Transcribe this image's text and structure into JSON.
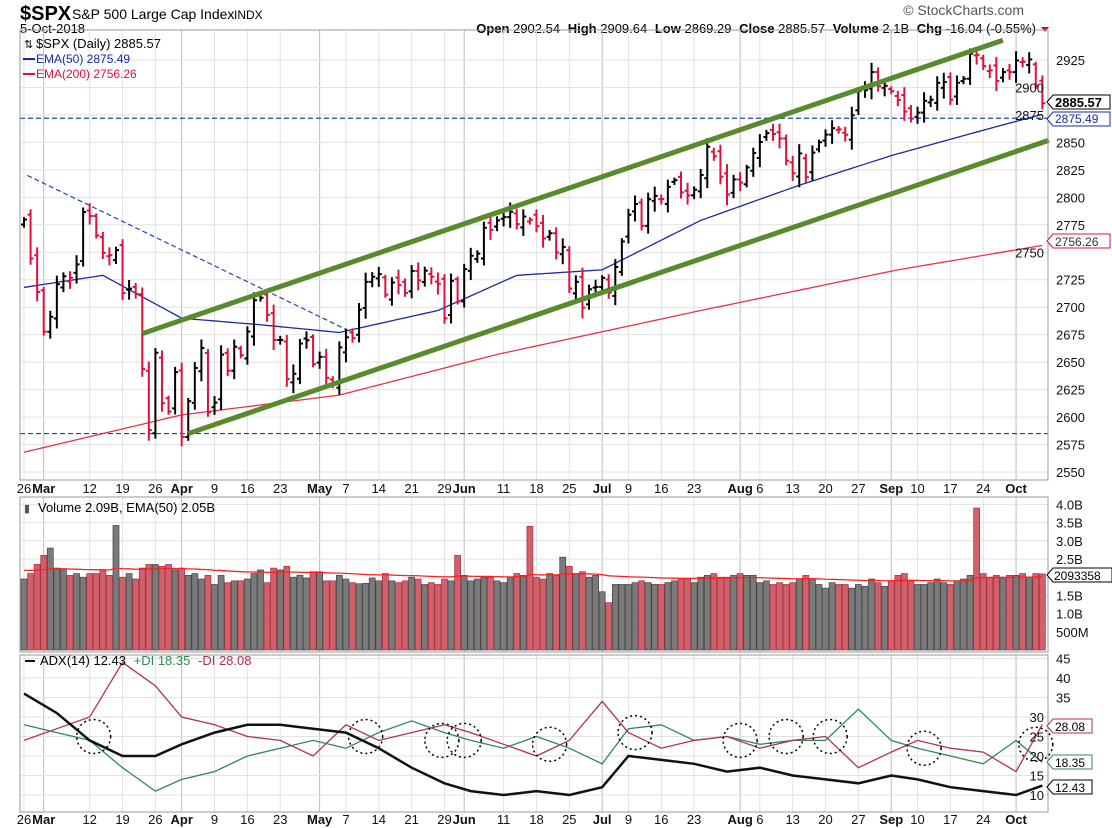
{
  "header": {
    "symbol": "$SPX",
    "name": "S&P 500 Large Cap Index",
    "exchange": "INDX",
    "date": "5-Oct-2018",
    "watermark": "© StockCharts.com",
    "quote": {
      "open_label": "Open",
      "open": "2902.54",
      "high_label": "High",
      "high": "2909.64",
      "low_label": "Low",
      "low": "2869.29",
      "close_label": "Close",
      "close": "2885.57",
      "volume_label": "Volume",
      "volume": "2.1B",
      "chg_label": "Chg",
      "chg": "-16.04 (-0.55%)"
    }
  },
  "legend": {
    "price": "$SPX (Daily) 2885.57",
    "ema50": "EMA(50) 2875.49",
    "ema200": "EMA(200) 2756.26",
    "volume": "Volume 2.09B, EMA(50) 2.05B",
    "adx": "ADX(14) 12.43",
    "pdi": "+DI 18.35",
    "mdi": "-DI 28.08"
  },
  "tags": {
    "close": "2885.57",
    "ema50": "2875.49",
    "ema200": "2756.26",
    "volume": "2093358",
    "mdi": "28.08",
    "pdi": "18.35",
    "adx": "12.43"
  },
  "colors": {
    "up": "#000000",
    "down": "#e0103c",
    "ema50": "#1c2a9c",
    "ema200": "#e8344a",
    "trend": "#5a8a2e",
    "dashed": "#2244aa",
    "vol_up": "#7a7a7a",
    "vol_down": "#d0606a",
    "pdi": "#2e8a52",
    "mdi": "#b0305a"
  },
  "chart_data": [
    {
      "type": "ohlc",
      "title": "$SPX (Daily)",
      "ylim": [
        2540,
        2950
      ],
      "yticks": [
        2550,
        2575,
        2600,
        2625,
        2650,
        2675,
        2700,
        2725,
        2750,
        2775,
        2800,
        2825,
        2850,
        2875,
        2900,
        2925
      ],
      "xtick_labels": [
        {
          "i": 0,
          "t": "26",
          "b": false
        },
        {
          "i": 3,
          "t": "Mar",
          "b": true
        },
        {
          "i": 10,
          "t": "12",
          "b": false
        },
        {
          "i": 15,
          "t": "19",
          "b": false
        },
        {
          "i": 20,
          "t": "26",
          "b": false
        },
        {
          "i": 24,
          "t": "Apr",
          "b": true
        },
        {
          "i": 29,
          "t": "9",
          "b": false
        },
        {
          "i": 34,
          "t": "16",
          "b": false
        },
        {
          "i": 39,
          "t": "23",
          "b": false
        },
        {
          "i": 45,
          "t": "May",
          "b": true
        },
        {
          "i": 49,
          "t": "7",
          "b": false
        },
        {
          "i": 54,
          "t": "14",
          "b": false
        },
        {
          "i": 59,
          "t": "21",
          "b": false
        },
        {
          "i": 64,
          "t": "29",
          "b": false
        },
        {
          "i": 67,
          "t": "Jun",
          "b": true
        },
        {
          "i": 73,
          "t": "11",
          "b": false
        },
        {
          "i": 78,
          "t": "18",
          "b": false
        },
        {
          "i": 83,
          "t": "25",
          "b": false
        },
        {
          "i": 88,
          "t": "Jul",
          "b": true
        },
        {
          "i": 92,
          "t": "9",
          "b": false
        },
        {
          "i": 97,
          "t": "16",
          "b": false
        },
        {
          "i": 102,
          "t": "23",
          "b": false
        },
        {
          "i": 109,
          "t": "Aug",
          "b": true
        },
        {
          "i": 112,
          "t": "6",
          "b": false
        },
        {
          "i": 117,
          "t": "13",
          "b": false
        },
        {
          "i": 122,
          "t": "20",
          "b": false
        },
        {
          "i": 127,
          "t": "27",
          "b": false
        },
        {
          "i": 132,
          "t": "Sep",
          "b": true
        },
        {
          "i": 136,
          "t": "10",
          "b": false
        },
        {
          "i": 141,
          "t": "17",
          "b": false
        },
        {
          "i": 146,
          "t": "24",
          "b": false
        },
        {
          "i": 151,
          "t": "Oct",
          "b": true
        }
      ],
      "closes": [
        2779.76,
        2744.28,
        2713.83,
        2677.67,
        2691.25,
        2720.94,
        2728.12,
        2726.8,
        2738.97,
        2786.57,
        2783.02,
        2765.31,
        2749.48,
        2747.33,
        2752.01,
        2712.92,
        2716.94,
        2711.93,
        2643.69,
        2588.26,
        2658.55,
        2612.62,
        2605.0,
        2640.87,
        2581.88,
        2614.45,
        2644.69,
        2662.84,
        2604.47,
        2613.16,
        2656.87,
        2642.19,
        2663.99,
        2656.3,
        2677.84,
        2706.39,
        2708.64,
        2693.13,
        2670.14,
        2670.29,
        2634.56,
        2639.4,
        2666.94,
        2669.91,
        2648.05,
        2654.8,
        2635.67,
        2629.73,
        2663.42,
        2672.63,
        2671.92,
        2697.79,
        2723.07,
        2727.72,
        2730.13,
        2711.45,
        2722.46,
        2720.13,
        2712.97,
        2733.01,
        2724.44,
        2733.29,
        2727.76,
        2721.33,
        2689.86,
        2724.01,
        2705.27,
        2734.62,
        2746.87,
        2748.8,
        2772.35,
        2770.37,
        2779.03,
        2782.0,
        2786.85,
        2775.63,
        2782.49,
        2779.66,
        2773.75,
        2762.59,
        2767.32,
        2749.76,
        2754.88,
        2717.07,
        2723.06,
        2699.63,
        2716.31,
        2718.37,
        2726.71,
        2713.22,
        2736.61,
        2759.82,
        2784.17,
        2793.84,
        2774.02,
        2798.29,
        2801.31,
        2798.43,
        2809.55,
        2815.62,
        2804.49,
        2801.83,
        2806.98,
        2820.4,
        2846.07,
        2837.44,
        2818.82,
        2802.6,
        2816.29,
        2813.36,
        2827.22,
        2840.35,
        2850.4,
        2858.45,
        2857.7,
        2853.58,
        2833.28,
        2821.93,
        2839.96,
        2818.37,
        2840.69,
        2850.13,
        2857.05,
        2862.96,
        2861.82,
        2856.98,
        2874.69,
        2896.74,
        2897.52,
        2914.04,
        2901.13,
        2901.52,
        2896.72,
        2888.6,
        2878.05,
        2871.68,
        2877.13,
        2887.89,
        2888.92,
        2904.18,
        2904.98,
        2888.8,
        2904.31,
        2907.95,
        2930.75,
        2929.67,
        2919.37,
        2915.56,
        2905.97,
        2914.0,
        2913.98,
        2924.59,
        2923.43,
        2925.51,
        2901.61,
        2885.57
      ],
      "ema50_anchors": [
        [
          0,
          2718
        ],
        [
          12,
          2729
        ],
        [
          24,
          2690
        ],
        [
          36,
          2684
        ],
        [
          48,
          2677
        ],
        [
          63,
          2697
        ],
        [
          75,
          2729
        ],
        [
          88,
          2734
        ],
        [
          103,
          2779
        ],
        [
          118,
          2811
        ],
        [
          132,
          2838
        ],
        [
          149,
          2866
        ],
        [
          155,
          2875.49
        ]
      ],
      "ema200_anchors": [
        [
          0,
          2568
        ],
        [
          24,
          2602
        ],
        [
          48,
          2620
        ],
        [
          72,
          2657
        ],
        [
          103,
          2697
        ],
        [
          133,
          2734
        ],
        [
          155,
          2756.26
        ]
      ],
      "trendlines": [
        {
          "name": "upper-channel",
          "from": [
            18,
            2676
          ],
          "to": [
            149,
            2943
          ]
        },
        {
          "name": "lower-channel",
          "from": [
            25,
            2585
          ],
          "to": [
            156,
            2852
          ]
        }
      ],
      "downtrend": {
        "from": [
          0.5,
          2820
        ],
        "to": [
          50,
          2677
        ]
      },
      "horizontal_levels": [
        2872,
        2585
      ]
    },
    {
      "type": "bar",
      "title": "Volume",
      "yticks": [
        {
          "v": 0.5,
          "t": "500M"
        },
        {
          "v": 1.0,
          "t": "1.0B"
        },
        {
          "v": 1.5,
          "t": "1.5B"
        },
        {
          "v": 2.5,
          "t": "2.5B"
        },
        {
          "v": 3.0,
          "t": "3.0B"
        },
        {
          "v": 3.5,
          "t": "3.5B"
        },
        {
          "v": 4.0,
          "t": "4.0B"
        }
      ],
      "unit": "billions",
      "values": [
        1.95,
        2.1,
        2.35,
        2.6,
        2.8,
        2.25,
        2.22,
        2.05,
        2.1,
        2.0,
        2.1,
        2.1,
        2.2,
        2.05,
        3.42,
        2.0,
        2.1,
        1.95,
        2.25,
        2.35,
        2.35,
        2.3,
        2.35,
        2.2,
        2.25,
        2.05,
        2.1,
        1.95,
        2.05,
        1.8,
        2.05,
        1.85,
        1.9,
        1.9,
        1.95,
        2.1,
        2.2,
        1.85,
        2.25,
        2.2,
        2.3,
        2.0,
        2.05,
        1.98,
        2.15,
        2.15,
        1.9,
        1.9,
        2.05,
        1.95,
        1.85,
        1.82,
        1.83,
        1.98,
        1.9,
        2.1,
        1.9,
        1.85,
        1.9,
        2.0,
        1.95,
        1.8,
        1.85,
        1.8,
        1.95,
        1.9,
        2.6,
        2.05,
        1.9,
        1.95,
        2.0,
        2.0,
        1.9,
        1.85,
        2.0,
        2.1,
        2.05,
        3.4,
        2.0,
        1.95,
        2.1,
        2.05,
        2.55,
        2.3,
        2.1,
        2.15,
        2.0,
        2.05,
        1.6,
        1.3,
        1.8,
        1.8,
        1.8,
        1.85,
        1.9,
        1.85,
        1.8,
        1.8,
        1.85,
        1.9,
        1.95,
        1.95,
        1.85,
        2.0,
        2.05,
        2.1,
        2.0,
        2.0,
        2.05,
        2.1,
        2.05,
        2.05,
        1.85,
        1.9,
        1.8,
        1.85,
        1.8,
        1.85,
        1.95,
        2.05,
        1.95,
        1.8,
        1.7,
        1.85,
        1.8,
        1.8,
        1.7,
        1.8,
        1.75,
        1.95,
        1.85,
        1.75,
        1.9,
        2.05,
        2.1,
        1.9,
        1.8,
        1.8,
        1.85,
        1.95,
        1.85,
        1.8,
        1.9,
        1.95,
        2.05,
        3.9,
        2.1,
        2.0,
        2.05,
        2.0,
        2.05,
        2.05,
        2.1,
        2.0,
        2.1,
        2.09
      ],
      "ema50_last": 2.05
    },
    {
      "type": "line",
      "title": "ADX(14)",
      "yticks": [
        10,
        15,
        20,
        25,
        30,
        35,
        40,
        45
      ],
      "x_index": [
        0,
        5,
        10,
        15,
        20,
        24,
        29,
        34,
        39,
        44,
        49,
        54,
        59,
        64,
        68,
        73,
        78,
        83,
        88,
        92,
        97,
        102,
        107,
        112,
        117,
        122,
        127,
        132,
        136,
        141,
        146,
        151,
        155
      ],
      "series": [
        {
          "name": "ADX",
          "values": [
            36,
            31,
            24,
            20,
            20,
            23,
            26,
            28,
            28,
            27,
            26,
            22,
            17,
            13,
            11,
            10,
            11,
            10,
            12,
            20,
            19,
            18,
            16,
            17,
            15,
            14,
            13,
            15,
            14,
            12,
            11,
            10,
            12.43
          ]
        },
        {
          "name": "+DI",
          "values": [
            28,
            26,
            24,
            17,
            11,
            14,
            16,
            20,
            22,
            24,
            22,
            26,
            29,
            26,
            24,
            22,
            25,
            22,
            18,
            27,
            28,
            24,
            25,
            23,
            24,
            24,
            32,
            24,
            22,
            20,
            18,
            24,
            18.35
          ]
        },
        {
          "name": "-DI",
          "values": [
            24,
            27,
            30,
            44,
            38,
            30,
            28,
            25,
            24,
            20,
            28,
            24,
            26,
            28,
            26,
            23,
            20,
            24,
            34,
            26,
            22,
            24,
            25,
            22,
            24,
            25,
            17,
            21,
            24,
            22,
            21,
            16,
            28.08
          ]
        }
      ],
      "crossover_markers": [
        [
          10.6,
          25
        ],
        [
          52,
          25
        ],
        [
          63.6,
          24
        ],
        [
          67,
          24
        ],
        [
          80,
          23
        ],
        [
          93,
          26
        ],
        [
          109,
          24
        ],
        [
          116,
          25
        ],
        [
          122.7,
          25
        ],
        [
          137,
          22
        ],
        [
          154,
          23
        ]
      ]
    }
  ]
}
